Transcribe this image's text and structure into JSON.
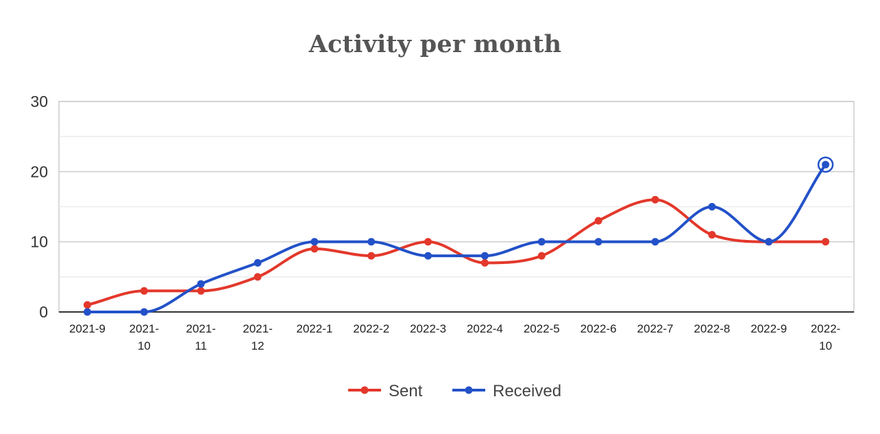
{
  "chart_data": {
    "type": "line",
    "title": "Activity per month",
    "categories": [
      "2021-9",
      "2021-10",
      "2021-11",
      "2021-12",
      "2022-1",
      "2022-2",
      "2022-3",
      "2022-4",
      "2022-5",
      "2022-6",
      "2022-7",
      "2022-8",
      "2022-9",
      "2022-10"
    ],
    "series": [
      {
        "name": "Sent",
        "color": "#e3382b",
        "values": [
          1,
          3,
          3,
          5,
          9,
          8,
          10,
          7,
          8,
          13,
          16,
          11,
          10,
          10
        ]
      },
      {
        "name": "Received",
        "color": "#2351c8",
        "values": [
          0,
          0,
          4,
          7,
          10,
          10,
          8,
          8,
          10,
          10,
          10,
          15,
          10,
          21
        ]
      }
    ],
    "y_ticks": [
      0,
      10,
      20,
      30
    ],
    "ylim": [
      0,
      30
    ],
    "grid": true,
    "legend_position": "bottom",
    "smooth": true
  }
}
